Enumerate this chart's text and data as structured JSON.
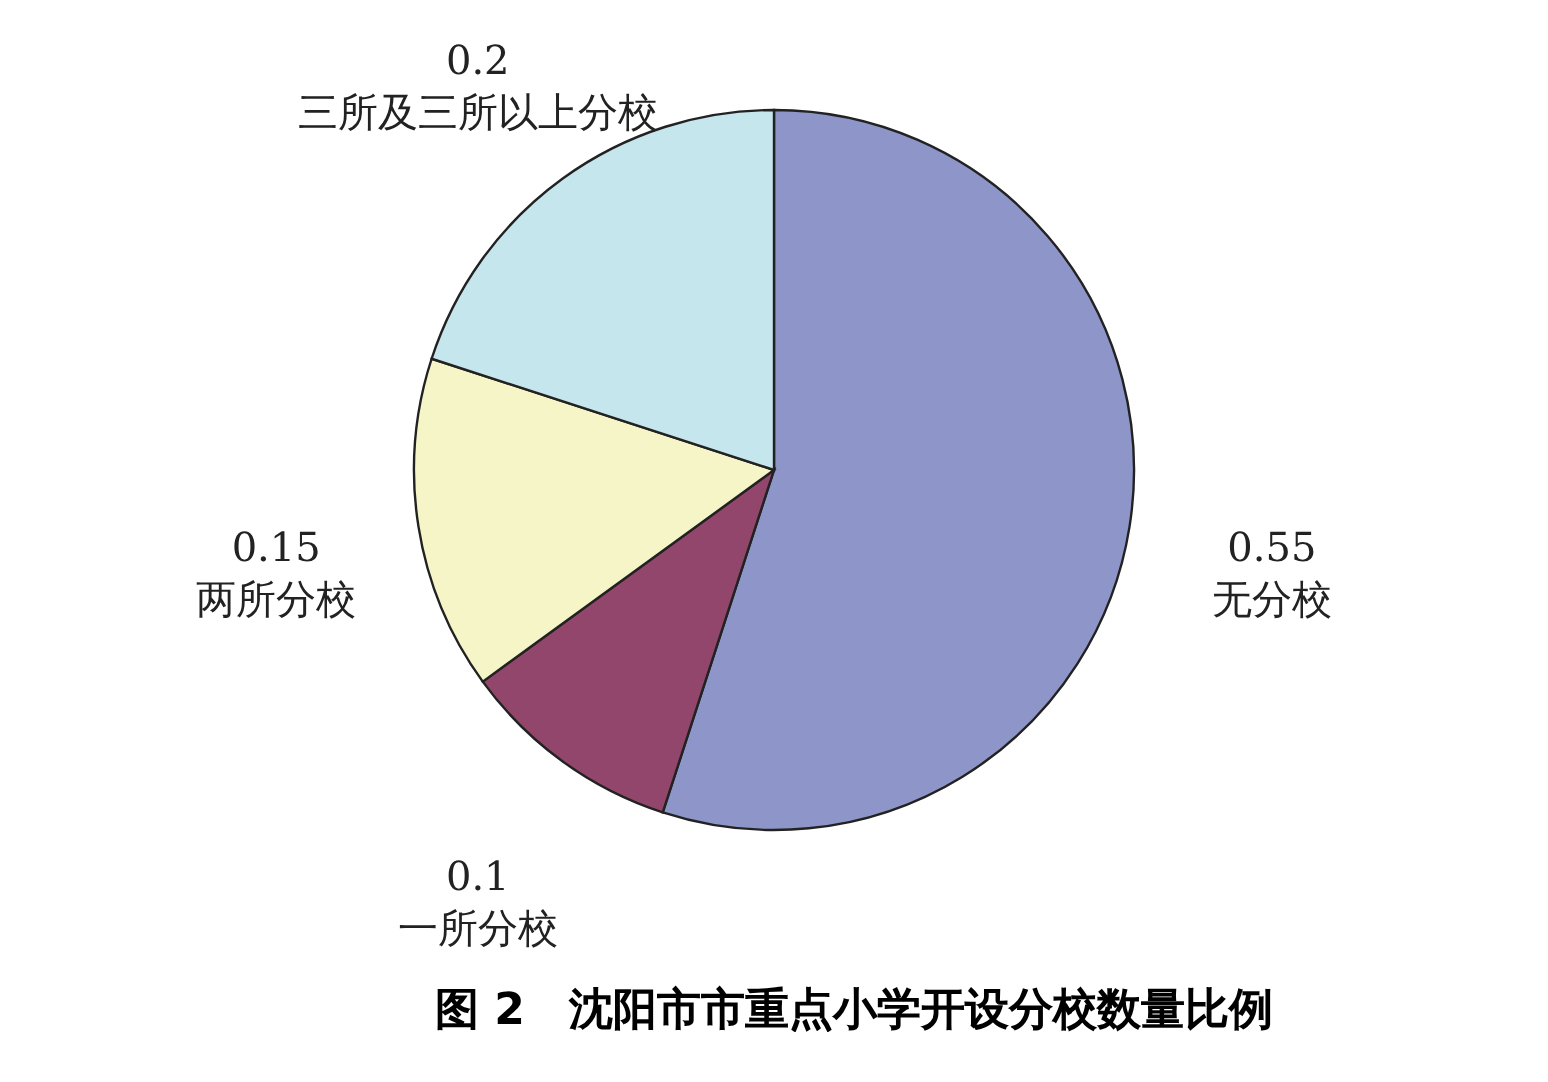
{
  "chart_data": {
    "type": "pie",
    "title": "图 2　沈阳市市重点小学开设分校数量比例",
    "categories": [
      "无分校",
      "一所分校",
      "两所分校",
      "三所及三所以上分校"
    ],
    "values": [
      0.55,
      0.1,
      0.15,
      0.2
    ],
    "colors": [
      "#8e96c9",
      "#93466c",
      "#f5f5c8",
      "#c5e6ec"
    ],
    "data_labels": true
  }
}
